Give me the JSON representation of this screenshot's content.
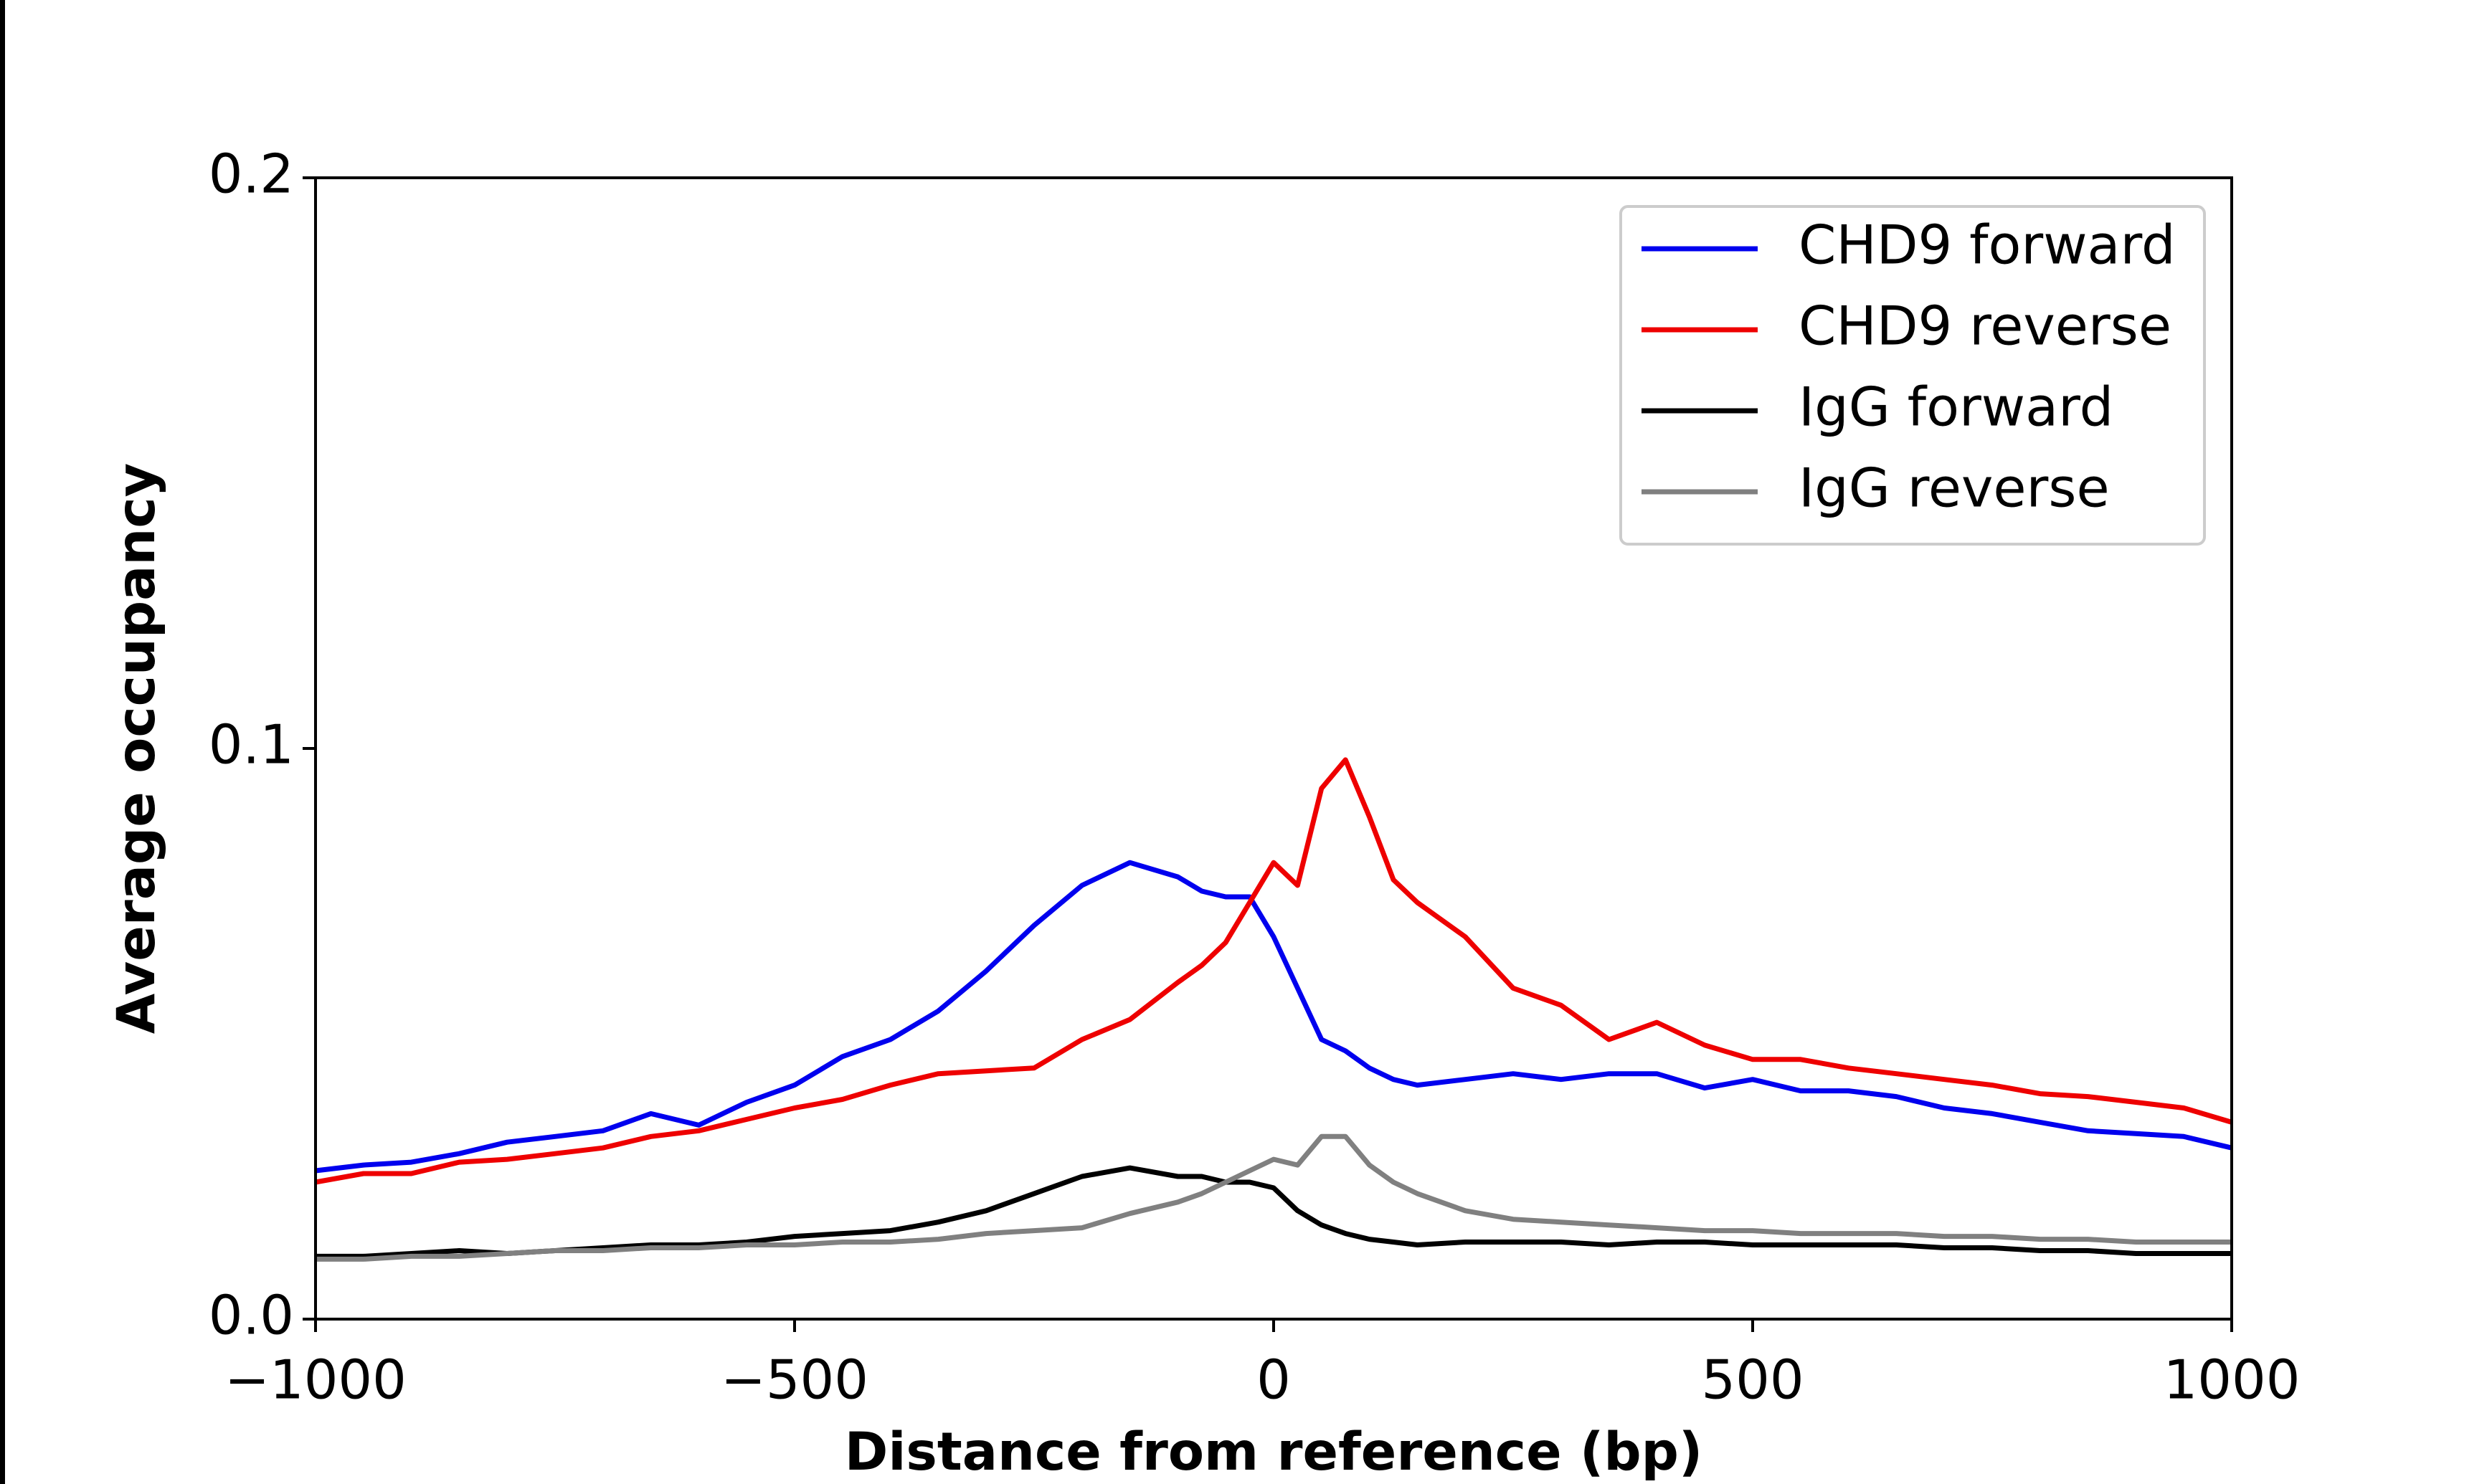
{
  "chart_data": {
    "type": "line",
    "xlabel": "Distance from reference (bp)",
    "ylabel": "Average occupancy",
    "x": [
      -1000,
      -950,
      -900,
      -850,
      -800,
      -750,
      -700,
      -650,
      -600,
      -550,
      -500,
      -450,
      -400,
      -350,
      -300,
      -250,
      -200,
      -150,
      -100,
      -75,
      -50,
      -25,
      0,
      25,
      50,
      75,
      100,
      125,
      150,
      200,
      250,
      300,
      350,
      400,
      450,
      500,
      550,
      600,
      650,
      700,
      750,
      800,
      850,
      900,
      950,
      1000
    ],
    "series": [
      {
        "name": "CHD9 forward",
        "color": "#0000ee",
        "values": [
          0.026,
          0.027,
          0.0275,
          0.029,
          0.031,
          0.032,
          0.033,
          0.036,
          0.034,
          0.038,
          0.041,
          0.046,
          0.049,
          0.054,
          0.061,
          0.069,
          0.076,
          0.08,
          0.0775,
          0.075,
          0.074,
          0.074,
          0.067,
          0.058,
          0.049,
          0.047,
          0.044,
          0.042,
          0.041,
          0.042,
          0.043,
          0.042,
          0.043,
          0.043,
          0.0405,
          0.042,
          0.04,
          0.04,
          0.039,
          0.037,
          0.036,
          0.0345,
          0.033,
          0.0325,
          0.032,
          0.03
        ]
      },
      {
        "name": "CHD9 reverse",
        "color": "#ee0000",
        "values": [
          0.024,
          0.0255,
          0.0255,
          0.0275,
          0.028,
          0.029,
          0.03,
          0.032,
          0.033,
          0.035,
          0.037,
          0.0385,
          0.041,
          0.043,
          0.0435,
          0.044,
          0.049,
          0.0525,
          0.059,
          0.062,
          0.066,
          0.073,
          0.08,
          0.076,
          0.093,
          0.098,
          0.088,
          0.077,
          0.073,
          0.067,
          0.058,
          0.055,
          0.049,
          0.052,
          0.048,
          0.0455,
          0.0455,
          0.044,
          0.043,
          0.042,
          0.041,
          0.0395,
          0.039,
          0.038,
          0.037,
          0.0345
        ]
      },
      {
        "name": "IgG forward",
        "color": "#000000",
        "values": [
          0.011,
          0.011,
          0.0115,
          0.012,
          0.0115,
          0.012,
          0.0125,
          0.013,
          0.013,
          0.0135,
          0.0145,
          0.015,
          0.0155,
          0.017,
          0.019,
          0.022,
          0.025,
          0.0265,
          0.025,
          0.025,
          0.024,
          0.024,
          0.023,
          0.019,
          0.0165,
          0.015,
          0.014,
          0.0135,
          0.013,
          0.0135,
          0.0135,
          0.0135,
          0.013,
          0.0135,
          0.0135,
          0.013,
          0.013,
          0.013,
          0.013,
          0.0125,
          0.0125,
          0.012,
          0.012,
          0.0115,
          0.0115,
          0.0115
        ]
      },
      {
        "name": "IgG reverse",
        "color": "#808080",
        "values": [
          0.0105,
          0.0105,
          0.011,
          0.011,
          0.0115,
          0.012,
          0.012,
          0.0125,
          0.0125,
          0.013,
          0.013,
          0.0135,
          0.0135,
          0.014,
          0.015,
          0.0155,
          0.016,
          0.0185,
          0.0205,
          0.022,
          0.024,
          0.026,
          0.028,
          0.027,
          0.032,
          0.032,
          0.027,
          0.024,
          0.022,
          0.019,
          0.0175,
          0.017,
          0.0165,
          0.016,
          0.0155,
          0.0155,
          0.015,
          0.015,
          0.015,
          0.0145,
          0.0145,
          0.014,
          0.014,
          0.0135,
          0.0135,
          0.0135
        ]
      }
    ],
    "xlim": [
      -1000,
      1000
    ],
    "xticks": [
      {
        "value": -1000,
        "label": "−1000"
      },
      {
        "value": -500,
        "label": "−500"
      },
      0,
      500,
      1000
    ],
    "ylim": [
      0,
      0.2
    ],
    "yticks": [
      {
        "value": 0,
        "label": "0.0"
      },
      0.1,
      0.2
    ],
    "grid": false,
    "legend": "upper right"
  }
}
